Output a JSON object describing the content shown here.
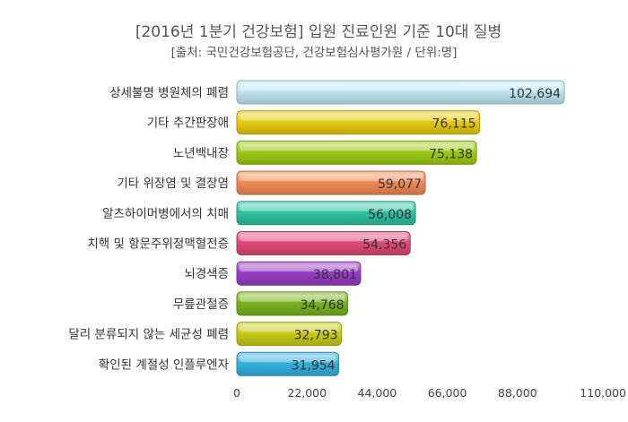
{
  "chart_data": {
    "type": "bar",
    "orientation": "horizontal",
    "title": "[2016년 1분기 건강보험] 입원 진료인원 기준 10대 질병",
    "subtitle": "[출처: 국민건강보험공단, 건강보험심사평가원 / 단위:명]",
    "categories": [
      "상세불명 병원체의 폐렴",
      "기타 추간판장애",
      "노년백내장",
      "기타 위장염 및 결장염",
      "알츠하이머병에서의 치매",
      "치핵 및 항문주위정맥혈전증",
      "뇌경색증",
      "무릎관절증",
      "달리 분류되지 않는 세균성 폐렴",
      "확인된 계절성 인플루엔자"
    ],
    "values": [
      102694,
      76115,
      75138,
      59077,
      56008,
      54356,
      38801,
      34768,
      32793,
      31954
    ],
    "value_labels": [
      "102,694",
      "76,115",
      "75,138",
      "59,077",
      "56,008",
      "54,356",
      "38,801",
      "34,768",
      "32,793",
      "31,954"
    ],
    "xlim": [
      0,
      110000
    ],
    "x_ticks": [
      0,
      22000,
      44000,
      66000,
      88000,
      110000
    ],
    "x_tick_labels": [
      "0",
      "22,000",
      "44,000",
      "66,000",
      "88,000",
      "110,000"
    ],
    "grid": false,
    "legend": "none",
    "colors": [
      "#bfe6f4",
      "#e6cc10",
      "#9ccc14",
      "#f08a54",
      "#2ec2a2",
      "#e04a78",
      "#9a3cc4",
      "#7ab320",
      "#c8cc18",
      "#36b2e0"
    ]
  }
}
